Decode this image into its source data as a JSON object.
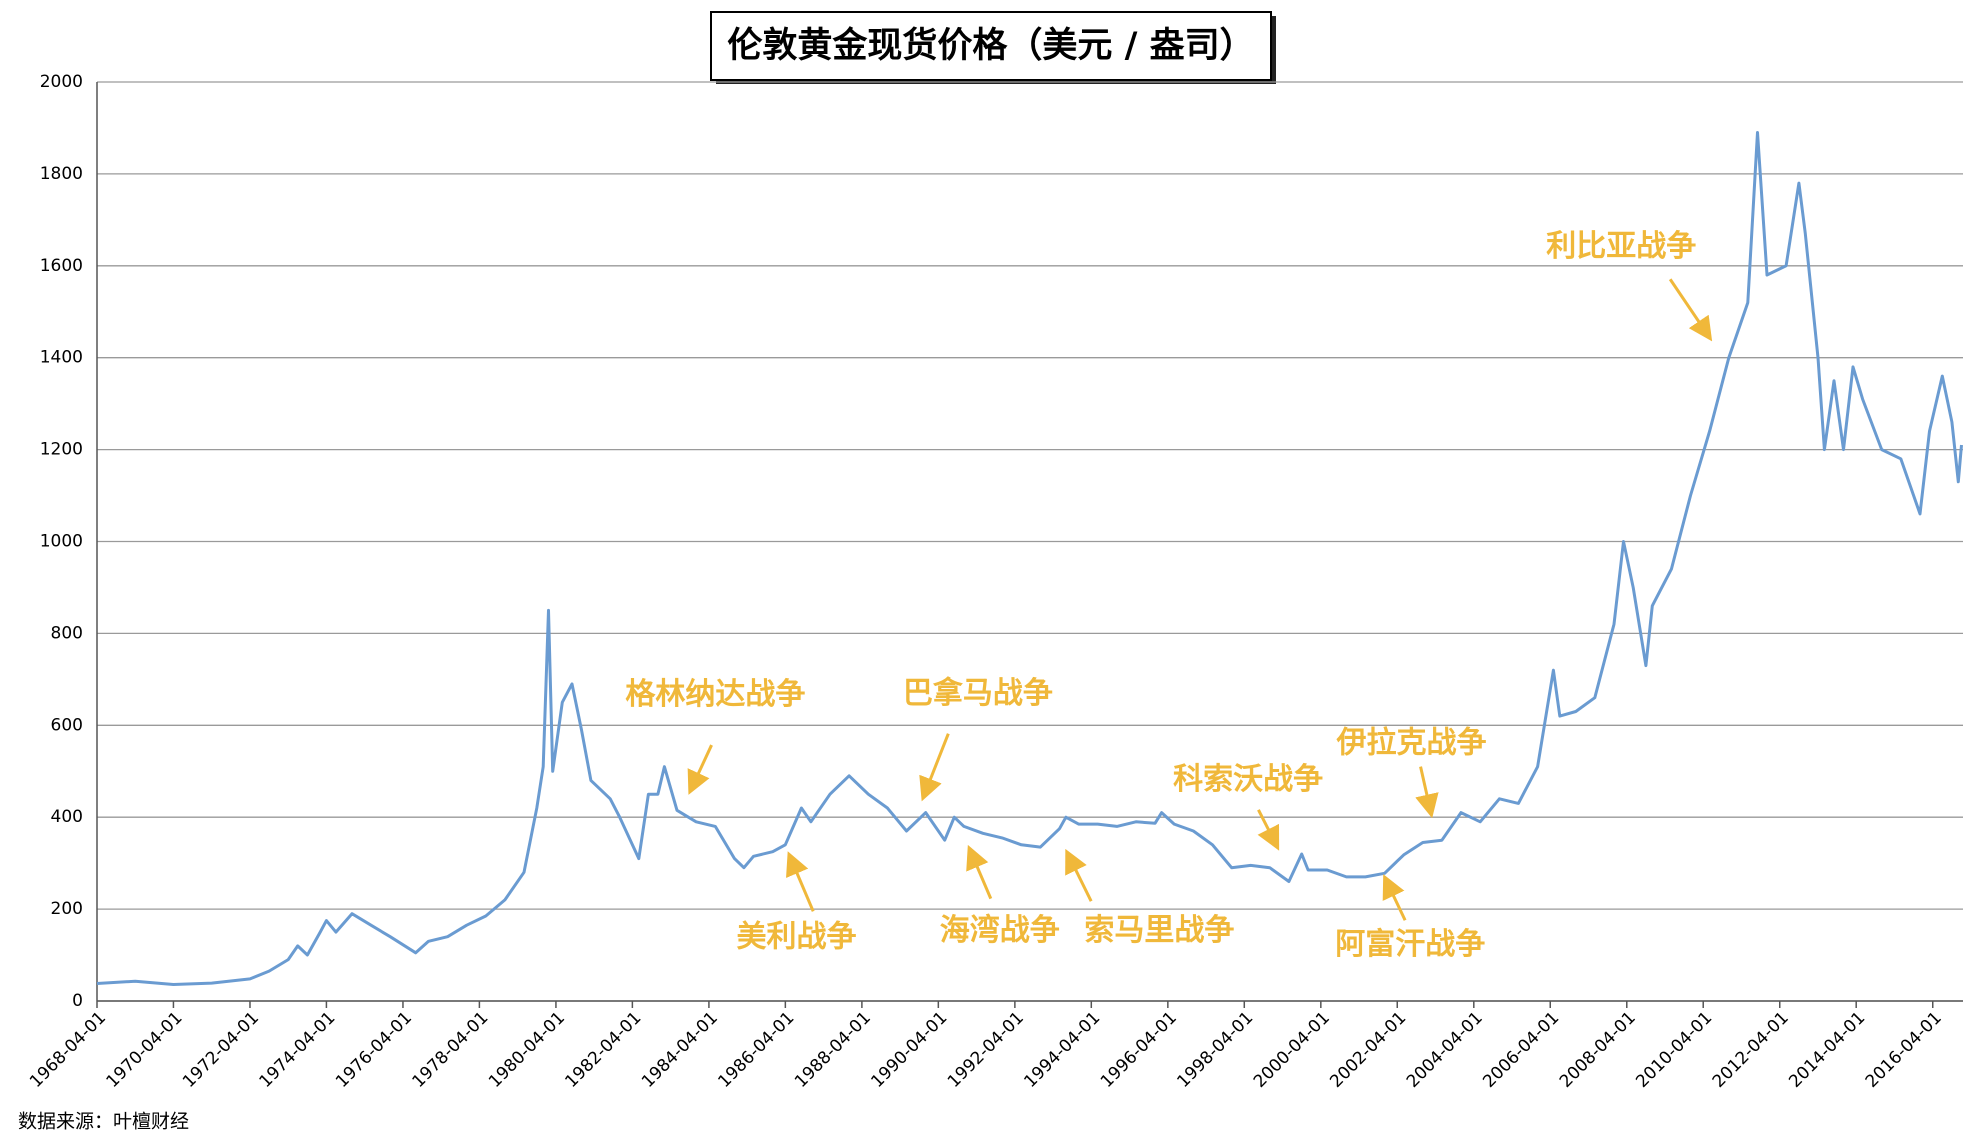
{
  "chart_data": {
    "type": "line",
    "title": "伦敦黄金现货价格（美元 / 盎司）",
    "source": "数据来源：叶檀财经",
    "color": "#6a9bd1",
    "grid": true,
    "annotations": [
      "格林纳达战争",
      "巴拿马战争",
      "利比亚战争",
      "科索沃战争",
      "伊拉克战争",
      "美利战争",
      "海湾战争",
      "索马里战争",
      "阿富汗战争"
    ],
    "annotation_color": "#f0b83a",
    "xlim": [
      "1968-04-01",
      "2017-01-15"
    ],
    "xticks": [
      "1968-04-01",
      "1970-04-01",
      "1972-04-01",
      "1974-04-01",
      "1976-04-01",
      "1978-04-01",
      "1980-04-01",
      "1982-04-01",
      "1984-04-01",
      "1986-04-01",
      "1988-04-01",
      "1990-04-01",
      "1992-04-01",
      "1994-04-01",
      "1996-04-01",
      "1998-04-01",
      "2000-04-01",
      "2002-04-01",
      "2004-04-01",
      "2006-04-01",
      "2008-04-01",
      "2010-04-01",
      "2012-04-01",
      "2014-04-01",
      "2016-04-01"
    ],
    "ylim": [
      0,
      2000
    ],
    "yticks": [
      0,
      200,
      400,
      600,
      800,
      1000,
      1200,
      1400,
      1600,
      1800,
      2000
    ],
    "x": [
      "1968-04-01",
      "1969-04-01",
      "1970-04-01",
      "1971-04-01",
      "1972-04-01",
      "1972-10-01",
      "1973-04-01",
      "1973-07-01",
      "1973-10-01",
      "1974-02-01",
      "1974-04-01",
      "1974-07-01",
      "1974-12-01",
      "1975-06-01",
      "1975-12-01",
      "1976-08-01",
      "1976-12-01",
      "1977-06-01",
      "1977-12-01",
      "1978-06-01",
      "1978-12-01",
      "1979-06-01",
      "1979-10-01",
      "1979-12-01",
      "1980-01-21",
      "1980-03-01",
      "1980-06-01",
      "1980-09-01",
      "1980-12-01",
      "1981-03-01",
      "1981-06-01",
      "1981-09-01",
      "1981-12-01",
      "1982-06-01",
      "1982-09-01",
      "1982-12-01",
      "1983-02-01",
      "1983-06-01",
      "1983-12-01",
      "1984-06-01",
      "1984-12-01",
      "1985-03-01",
      "1985-06-01",
      "1985-12-01",
      "1986-04-01",
      "1986-09-01",
      "1986-12-01",
      "1987-06-01",
      "1987-12-01",
      "1988-06-01",
      "1988-12-01",
      "1989-06-01",
      "1989-12-01",
      "1990-06-01",
      "1990-09-01",
      "1990-12-01",
      "1991-06-01",
      "1991-12-01",
      "1992-06-01",
      "1992-12-01",
      "1993-06-01",
      "1993-08-01",
      "1993-12-01",
      "1994-06-01",
      "1994-12-01",
      "1995-06-01",
      "1995-12-01",
      "1996-02-01",
      "1996-06-01",
      "1996-12-01",
      "1997-06-01",
      "1997-12-01",
      "1998-06-01",
      "1998-12-01",
      "1999-06-01",
      "1999-10-01",
      "1999-12-01",
      "2000-06-01",
      "2000-12-01",
      "2001-06-01",
      "2001-12-01",
      "2002-06-01",
      "2002-12-01",
      "2003-06-01",
      "2003-12-01",
      "2004-06-01",
      "2004-12-01",
      "2005-06-01",
      "2005-12-01",
      "2006-05-01",
      "2006-07-01",
      "2006-12-01",
      "2007-06-01",
      "2007-12-01",
      "2008-03-01",
      "2008-06-01",
      "2008-10-01",
      "2008-12-01",
      "2009-06-01",
      "2009-12-01",
      "2010-06-01",
      "2010-12-01",
      "2011-06-01",
      "2011-09-01",
      "2011-12-01",
      "2012-06-01",
      "2012-10-01",
      "2012-12-01",
      "2013-04-01",
      "2013-06-01",
      "2013-09-01",
      "2013-12-01",
      "2014-03-01",
      "2014-06-01",
      "2014-12-01",
      "2015-06-01",
      "2015-12-01",
      "2016-03-01",
      "2016-07-01",
      "2016-10-01",
      "2016-12-01",
      "2017-01-01"
    ],
    "values": [
      38,
      43,
      36,
      39,
      48,
      65,
      90,
      120,
      100,
      150,
      175,
      150,
      190,
      165,
      140,
      105,
      130,
      140,
      165,
      185,
      220,
      280,
      420,
      510,
      850,
      500,
      650,
      690,
      590,
      480,
      460,
      440,
      400,
      310,
      450,
      450,
      510,
      415,
      390,
      380,
      310,
      290,
      315,
      325,
      340,
      420,
      390,
      450,
      490,
      450,
      420,
      370,
      410,
      350,
      400,
      380,
      365,
      355,
      340,
      335,
      375,
      400,
      385,
      385,
      380,
      390,
      387,
      410,
      385,
      370,
      340,
      290,
      295,
      290,
      260,
      320,
      285,
      285,
      270,
      270,
      278,
      318,
      345,
      350,
      410,
      390,
      440,
      430,
      510,
      720,
      620,
      630,
      660,
      820,
      1000,
      900,
      730,
      860,
      940,
      1100,
      1240,
      1400,
      1520,
      1890,
      1580,
      1600,
      1780,
      1670,
      1400,
      1200,
      1350,
      1200,
      1380,
      1310,
      1200,
      1180,
      1060,
      1240,
      1360,
      1260,
      1130,
      1210
    ]
  }
}
